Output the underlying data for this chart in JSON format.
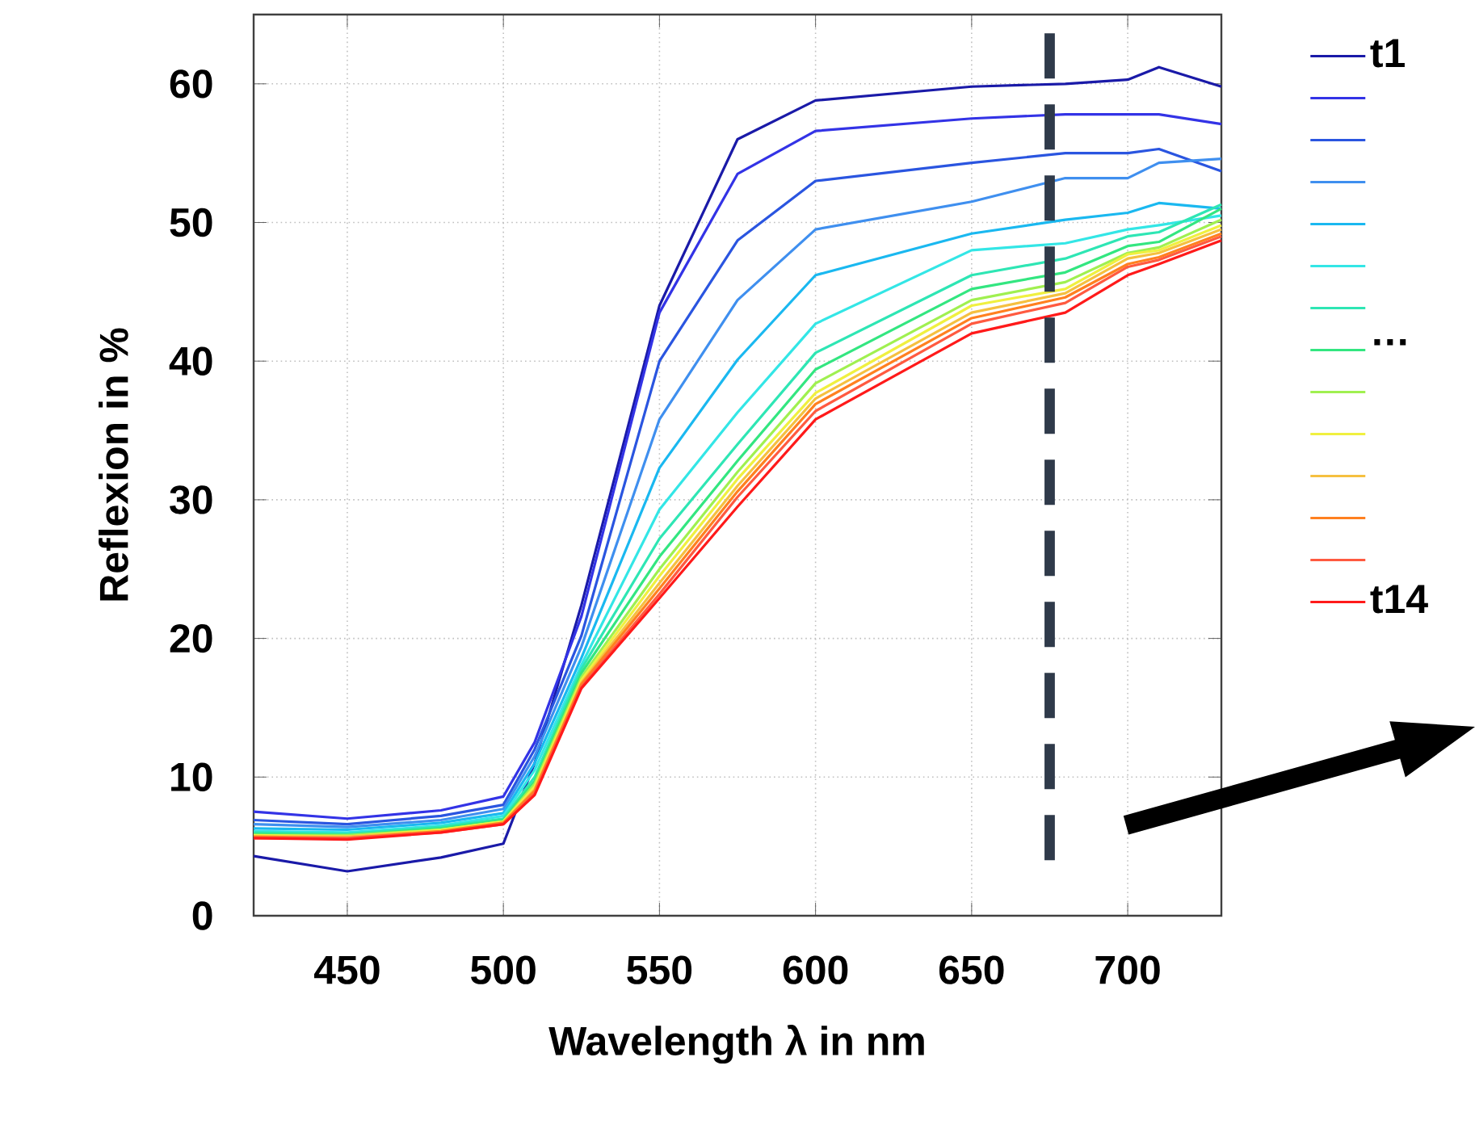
{
  "chart_data": {
    "type": "line",
    "xlabel": "Wavelength λ in nm",
    "ylabel": "Reflexion in %",
    "x": [
      420,
      450,
      480,
      500,
      510,
      525,
      550,
      575,
      600,
      650,
      680,
      700,
      710,
      730
    ],
    "xlim": [
      420,
      730
    ],
    "ylim": [
      0,
      65
    ],
    "xticks": [
      450,
      500,
      550,
      600,
      650,
      700
    ],
    "yticks": [
      0,
      10,
      20,
      30,
      40,
      50,
      60
    ],
    "grid": true,
    "legend": "right",
    "marker": "none",
    "line_style": "solid",
    "annotations": [
      "…"
    ],
    "ref_lines": [
      {
        "axis": "x",
        "value": 675,
        "label": null,
        "color": "#2f3a4a",
        "line_style": "dashed"
      }
    ],
    "series": [
      {
        "name": "t1",
        "color": "#1a1aa8",
        "values": [
          4.3,
          3.2,
          4.2,
          5.2,
          11,
          22.4,
          44,
          56,
          58.8,
          59.8,
          60,
          60.3,
          61.2,
          59.8
        ]
      },
      {
        "color": "#3333e6",
        "values": [
          7.5,
          7.0,
          7.6,
          8.6,
          12.5,
          21.6,
          43.5,
          53.5,
          56.6,
          57.5,
          57.8,
          57.8,
          57.8,
          57.1
        ]
      },
      {
        "color": "#2a55e0",
        "values": [
          6.9,
          6.6,
          7.2,
          8.0,
          12.0,
          20.2,
          40,
          48.7,
          53,
          54.3,
          55,
          55,
          55.3,
          53.7
        ]
      },
      {
        "color": "#3f8fef",
        "values": [
          6.6,
          6.4,
          6.9,
          7.7,
          11.5,
          19.4,
          35.8,
          44.4,
          49.5,
          51.5,
          53.2,
          53.2,
          54.3,
          54.6
        ]
      },
      {
        "color": "#1ab8f0",
        "values": [
          6.3,
          6.2,
          6.7,
          7.4,
          11,
          18.6,
          32.3,
          40.1,
          46.2,
          49.2,
          50.2,
          50.7,
          51.4,
          51
        ]
      },
      {
        "color": "#33e6e6",
        "values": [
          6.1,
          6.0,
          6.5,
          7.2,
          10.5,
          18.1,
          29.3,
          36.3,
          42.7,
          48,
          48.5,
          49.5,
          49.8,
          50.5
        ]
      },
      {
        "color": "#2ee6b4",
        "values": [
          6.0,
          5.9,
          6.4,
          7.0,
          10,
          17.8,
          27.2,
          34,
          40.6,
          46.2,
          47.4,
          49,
          49.3,
          51.3
        ]
      },
      {
        "color": "#33e680",
        "values": [
          5.9,
          5.8,
          6.3,
          6.9,
          9.7,
          17.5,
          25.9,
          32.8,
          39.4,
          45.2,
          46.4,
          48.3,
          48.6,
          51
        ]
      },
      {
        "color": "#a0f050",
        "values": [
          5.8,
          5.8,
          6.2,
          6.8,
          9.5,
          17.2,
          25,
          32,
          38.4,
          44.4,
          45.7,
          47.8,
          48.2,
          50.2
        ]
      },
      {
        "color": "#f0f040",
        "values": [
          5.8,
          5.7,
          6.2,
          6.8,
          9.3,
          17,
          24.5,
          31.5,
          37.7,
          44,
          45.2,
          47.7,
          48,
          49.8
        ]
      },
      {
        "color": "#f5c040",
        "values": [
          5.7,
          5.7,
          6.1,
          6.7,
          9.1,
          16.8,
          24,
          31,
          37.3,
          43.5,
          44.9,
          47.4,
          47.8,
          49.5
        ]
      },
      {
        "color": "#ff8020",
        "values": [
          5.7,
          5.6,
          6.1,
          6.7,
          9,
          16.7,
          23.6,
          30.6,
          36.9,
          43.1,
          44.6,
          47,
          47.5,
          49.2
        ]
      },
      {
        "color": "#ff5a40",
        "values": [
          5.6,
          5.6,
          6.0,
          6.6,
          8.8,
          16.5,
          23.2,
          30.2,
          36.4,
          42.7,
          44.2,
          46.8,
          47.3,
          49
        ]
      },
      {
        "name": "t14",
        "color": "#ff1a1a",
        "values": [
          5.6,
          5.5,
          6.0,
          6.6,
          8.7,
          16.4,
          22.9,
          29.5,
          35.8,
          42,
          43.5,
          46.2,
          47,
          48.7
        ]
      }
    ]
  }
}
